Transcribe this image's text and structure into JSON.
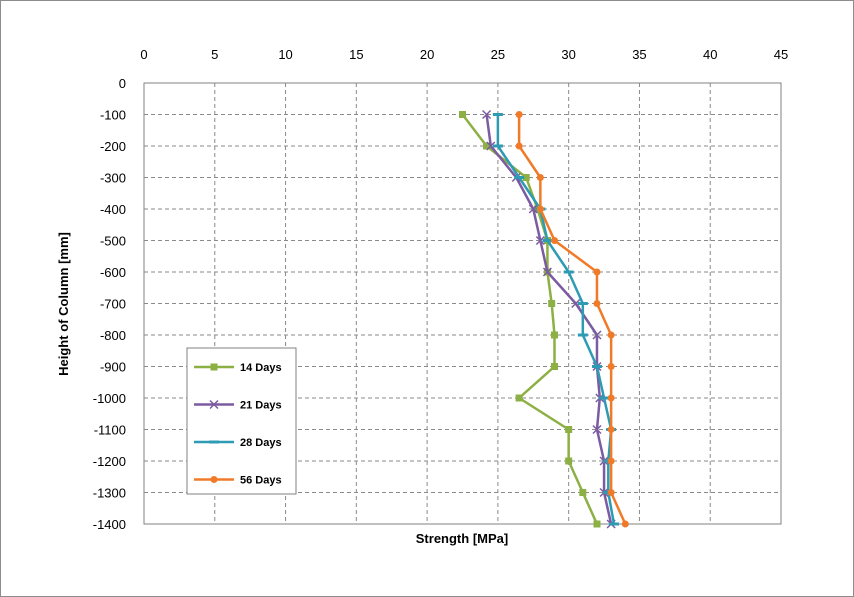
{
  "chart_data": {
    "type": "line",
    "title": "",
    "xlabel": "Strength [MPa]",
    "ylabel": "Height of Column [mm]",
    "xlim": [
      0,
      45
    ],
    "ylim": [
      -1400,
      0
    ],
    "x_ticks": [
      "0",
      "5",
      "10",
      "15",
      "20",
      "25",
      "30",
      "35",
      "40",
      "45"
    ],
    "y_ticks": [
      "0",
      "-100",
      "-200",
      "-300",
      "-400",
      "-500",
      "-600",
      "-700",
      "-800",
      "-900",
      "-1000",
      "-1100",
      "-1200",
      "-1300",
      "-1400"
    ],
    "x_axis_position": "top",
    "grid": true,
    "legend_position": "bottom-left",
    "heights": [
      -100,
      -200,
      -300,
      -400,
      -500,
      -600,
      -700,
      -800,
      -900,
      -1000,
      -1100,
      -1200,
      -1300,
      -1400
    ],
    "series": [
      {
        "name": "14 Days",
        "color": "#8cb043",
        "marker": "square",
        "values": [
          22.5,
          24.2,
          27.0,
          27.8,
          28.5,
          28.5,
          28.8,
          29.0,
          29.0,
          26.5,
          30.0,
          30.0,
          31.0,
          32.0
        ]
      },
      {
        "name": "21 Days",
        "color": "#7b5ba1",
        "marker": "x",
        "values": [
          24.2,
          24.5,
          26.3,
          27.5,
          28.0,
          28.5,
          30.5,
          32.0,
          32.0,
          32.2,
          32.0,
          32.5,
          32.5,
          33.0
        ]
      },
      {
        "name": "28 Days",
        "color": "#2d9bb3",
        "marker": "dash",
        "values": [
          25.0,
          25.0,
          26.5,
          28.0,
          28.5,
          30.0,
          31.0,
          31.0,
          32.0,
          32.5,
          33.0,
          32.8,
          32.8,
          33.2
        ]
      },
      {
        "name": "56 Days",
        "color": "#f07a28",
        "marker": "circle",
        "values": [
          26.5,
          26.5,
          28.0,
          28.0,
          29.0,
          32.0,
          32.0,
          33.0,
          33.0,
          33.0,
          33.0,
          33.0,
          33.0,
          34.0
        ]
      }
    ]
  }
}
